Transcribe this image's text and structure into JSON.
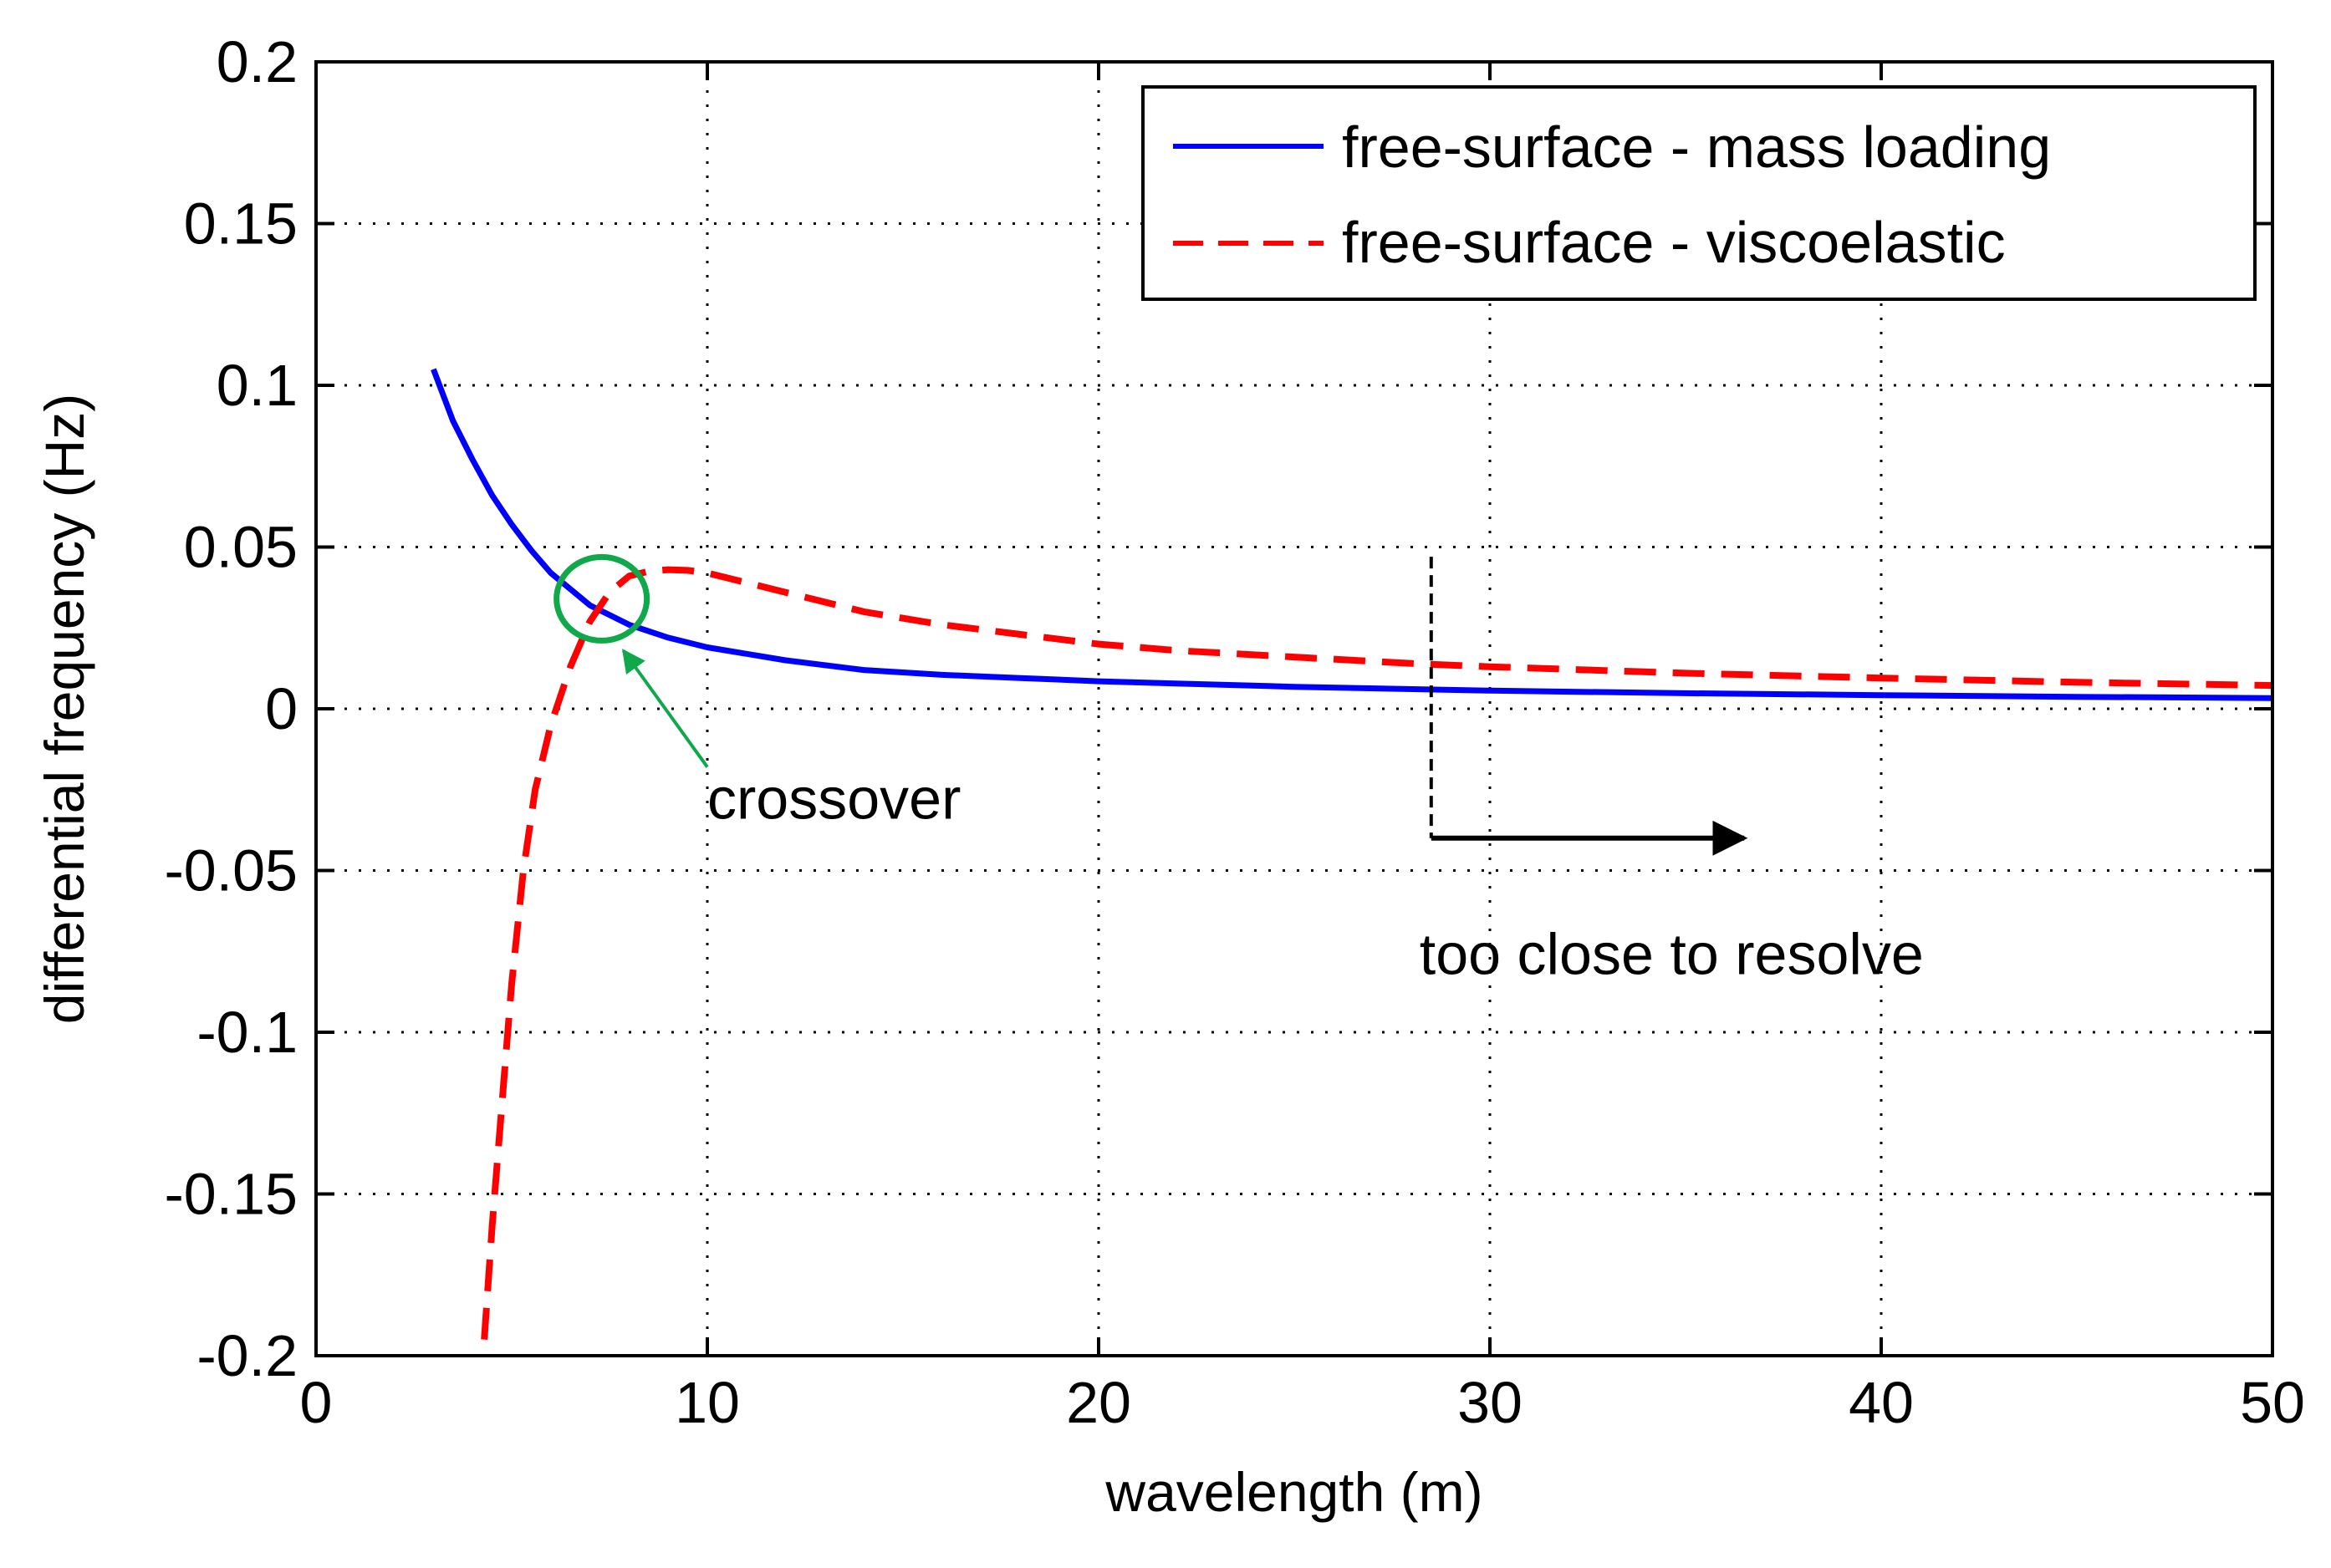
{
  "chart_data": {
    "type": "line",
    "title": "",
    "xlabel": "wavelength (m)",
    "ylabel": "differential frequency (Hz)",
    "xlim": [
      0,
      50
    ],
    "ylim": [
      -0.2,
      0.2
    ],
    "xticks": [
      0,
      10,
      20,
      30,
      40,
      50
    ],
    "xtick_labels": [
      "0",
      "10",
      "20",
      "30",
      "40",
      "50"
    ],
    "yticks": [
      -0.2,
      -0.15,
      -0.1,
      -0.05,
      0,
      0.05,
      0.1,
      0.15,
      0.2
    ],
    "ytick_labels": [
      "-0.2",
      "-0.15",
      "-0.1",
      "-0.05",
      "0",
      "0.05",
      "0.1",
      "0.15",
      "0.2"
    ],
    "grid": true,
    "legend_position": "top-right",
    "series": [
      {
        "name": "free-surface - mass loading",
        "color": "#0000ff",
        "style": "solid",
        "x": [
          3.0,
          3.5,
          4.0,
          4.5,
          5.0,
          5.5,
          6.0,
          6.5,
          7.0,
          7.5,
          8.0,
          9.0,
          10.0,
          12.0,
          14.0,
          16.0,
          18.0,
          20.0,
          25.0,
          30.0,
          35.0,
          40.0,
          45.0,
          50.0
        ],
        "values": [
          0.105,
          0.089,
          0.077,
          0.066,
          0.057,
          0.049,
          0.042,
          0.037,
          0.032,
          0.029,
          0.026,
          0.022,
          0.019,
          0.015,
          0.012,
          0.0105,
          0.0095,
          0.0085,
          0.0068,
          0.0056,
          0.0048,
          0.0042,
          0.0037,
          0.0033
        ]
      },
      {
        "name": "free-surface - viscoelastic",
        "color": "#ff0000",
        "style": "dashed",
        "x": [
          4.3,
          4.5,
          4.8,
          5.0,
          5.3,
          5.6,
          6.0,
          6.5,
          7.0,
          7.5,
          8.0,
          8.5,
          9.0,
          9.5,
          10.0,
          11.0,
          12.0,
          14.0,
          16.0,
          18.0,
          20.0,
          22.0,
          25.0,
          28.0,
          30.0,
          35.0,
          40.0,
          45.0,
          50.0
        ],
        "values": [
          -0.195,
          -0.16,
          -0.115,
          -0.085,
          -0.05,
          -0.025,
          -0.005,
          0.013,
          0.027,
          0.036,
          0.041,
          0.0425,
          0.043,
          0.0428,
          0.042,
          0.039,
          0.036,
          0.03,
          0.026,
          0.023,
          0.02,
          0.018,
          0.016,
          0.014,
          0.013,
          0.011,
          0.0095,
          0.0082,
          0.0072
        ]
      }
    ],
    "annotations": [
      {
        "text": "crossover",
        "x": 7.3,
        "y": 0.034,
        "marker": "circle",
        "color": "#0fa84a"
      },
      {
        "text": "too close to resolve",
        "x_from": 28.5,
        "x_to": 36.5,
        "y": -0.04,
        "marker": "arrow",
        "color": "#000000"
      }
    ]
  }
}
